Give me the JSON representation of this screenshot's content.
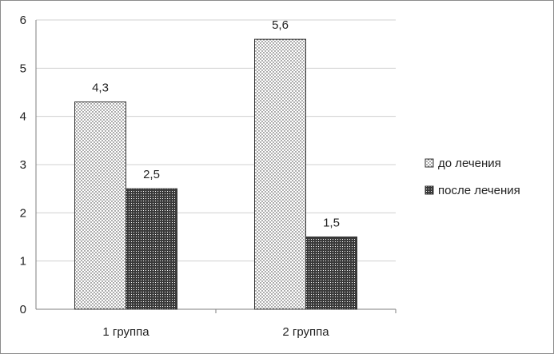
{
  "chart_data": {
    "type": "bar",
    "categories": [
      "1 группа",
      "2 группа"
    ],
    "series": [
      {
        "name": "до лечения",
        "values": [
          4.3,
          5.6
        ],
        "labels": [
          "4,3",
          "5,6"
        ],
        "pattern": "dots"
      },
      {
        "name": "после лечения",
        "values": [
          2.5,
          1.5
        ],
        "labels": [
          "2,5",
          "1,5"
        ],
        "pattern": "dense"
      }
    ],
    "ylim": [
      0,
      6
    ],
    "yticks": [
      0,
      1,
      2,
      3,
      4,
      5,
      6
    ],
    "ytick_labels": [
      "0",
      "1",
      "2",
      "3",
      "4",
      "5",
      "6"
    ],
    "grid": true,
    "legend": "right",
    "colors": {
      "grid": "#d0d0d0",
      "axis": "#7f7f7f",
      "bar_border": "#333333"
    }
  }
}
